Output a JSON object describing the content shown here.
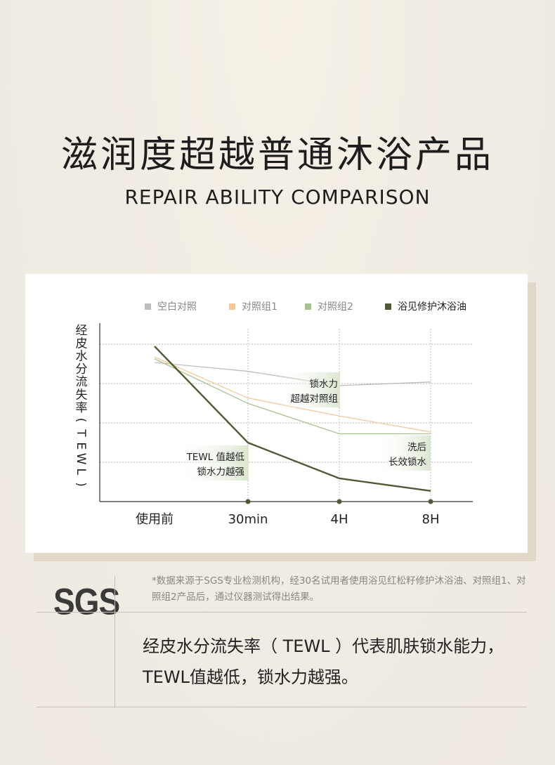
{
  "header": {
    "title": "滋润度超越普通沐浴产品",
    "subtitle": "REPAIR ABILITY COMPARISON"
  },
  "chart_data": {
    "type": "line",
    "ylabel_chars": [
      "经",
      "皮",
      "水",
      "分",
      "流",
      "失",
      "率",
      "(",
      "T",
      "E",
      "W",
      "L",
      ")"
    ],
    "categories": [
      "使用前",
      "30min",
      "4H",
      "8H"
    ],
    "ylim": [
      0,
      100
    ],
    "grid": "horizontal dotted",
    "legend_position": "top-right",
    "series": [
      {
        "name": "空白对照",
        "color": "#bdbdbd",
        "values": [
          78,
          73,
          65,
          67
        ]
      },
      {
        "name": "对照组1",
        "color": "#f2c99a",
        "values": [
          81,
          58,
          48,
          39
        ]
      },
      {
        "name": "对照组2",
        "color": "#a6c28e",
        "values": [
          80,
          55,
          38,
          38
        ]
      },
      {
        "name": "浴见修护沐浴油",
        "color": "#4e5a33",
        "values": [
          87,
          33,
          13,
          6
        ]
      }
    ],
    "annotations": [
      {
        "lines": [
          "锁水力",
          "超越对照组"
        ]
      },
      {
        "lines": [
          "TEWL 值越低",
          "锁水力越强"
        ]
      },
      {
        "lines": [
          "洗后",
          "长效锁水"
        ]
      }
    ]
  },
  "source": {
    "logo": "SGS",
    "footnote": "*数据来源于SGS专业检测机构，经30名试用者使用浴见红松籽修护沐浴油、对照组1、对照组2产品后，通过仪器测试得出结果。",
    "description": "经皮水分流失率（ TEWL ）代表肌肤锁水能力，TEWL值越低，锁水力越强。"
  }
}
